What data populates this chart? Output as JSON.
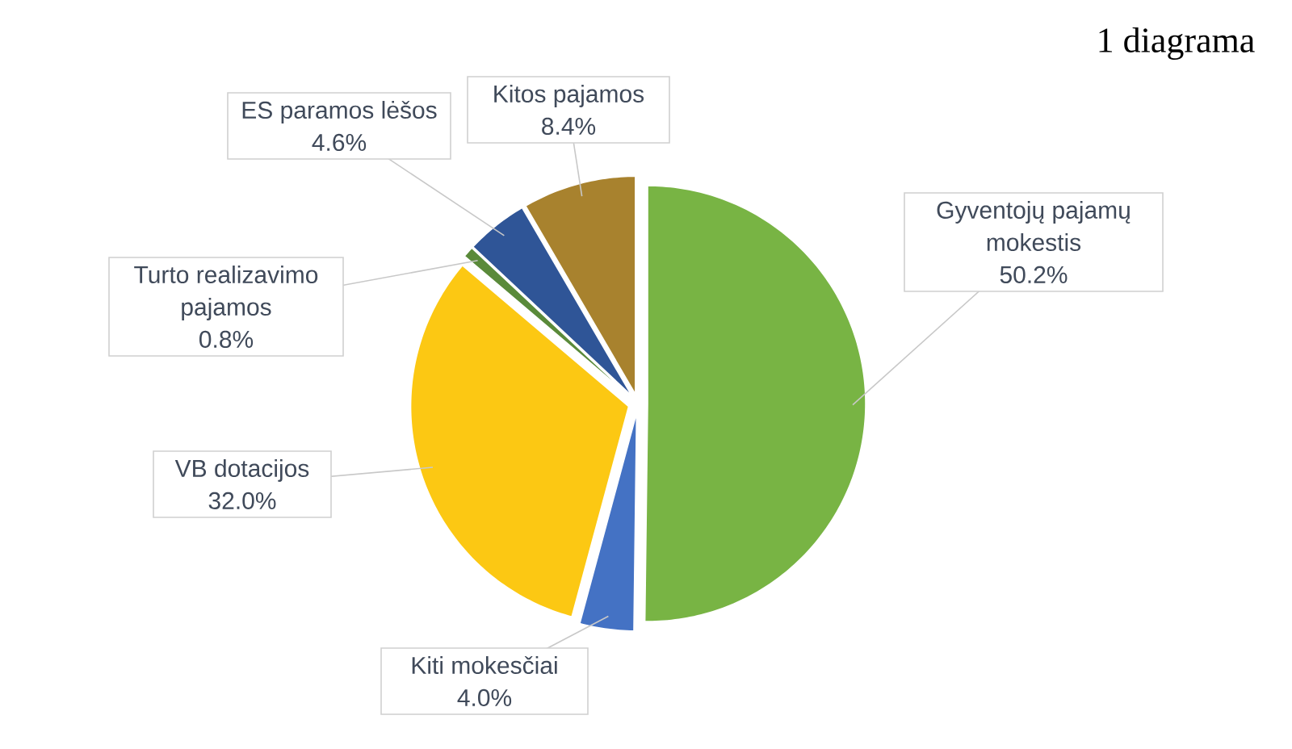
{
  "chart_data": {
    "type": "pie",
    "title": "1 diagrama",
    "categories": [
      "Gyventojų pajamų mokestis",
      "Kiti mokesčiai",
      "VB dotacijos",
      "Turto realizavimo pajamos",
      "ES paramos lėšos",
      "Kitos pajamos"
    ],
    "values": [
      50.2,
      4.0,
      32.0,
      0.8,
      4.6,
      8.4
    ],
    "colors": [
      "#78b444",
      "#4472c4",
      "#fcc813",
      "#5a8a3a",
      "#2f5597",
      "#a8822e"
    ],
    "value_labels": [
      "50.2%",
      "4.0%",
      "32.0%",
      "0.8%",
      "4.6%",
      "8.4%"
    ]
  }
}
